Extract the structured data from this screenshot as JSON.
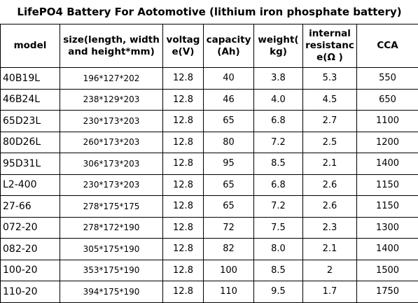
{
  "table": {
    "title": "LifePO4 Battery For Aotomotive (lithium iron phosphate battery)",
    "header": [
      "model",
      "size(length, width\nand height*mm)",
      "voltag\ne(V)",
      "capacity\n(Ah)",
      "weight(\nkg)",
      "internal\nresistanc\ne(Ω )",
      "CCA"
    ],
    "rows": [
      [
        "40B19L",
        "196*127*202",
        "12.8",
        "40",
        "3.8",
        "5.3",
        "550"
      ],
      [
        "46B24L",
        "238*129*203",
        "12.8",
        "46",
        "4.0",
        "4.5",
        "650"
      ],
      [
        "65D23L",
        "230*173*203",
        "12.8",
        "65",
        "6.8",
        "2.7",
        "1100"
      ],
      [
        "80D26L",
        "260*173*203",
        "12.8",
        "80",
        "7.2",
        "2.5",
        "1200"
      ],
      [
        "95D31L",
        "306*173*203",
        "12.8",
        "95",
        "8.5",
        "2.1",
        "1400"
      ],
      [
        "L2-400",
        "230*173*203",
        "12.8",
        "65",
        "6.8",
        "2.6",
        "1150"
      ],
      [
        "27-66",
        "278*175*175",
        "12.8",
        "65",
        "7.2",
        "2.6",
        "1150"
      ],
      [
        "072-20",
        "278*172*190",
        "12.8",
        "72",
        "7.5",
        "2.3",
        "1300"
      ],
      [
        "082-20",
        "305*175*190",
        "12.8",
        "82",
        "8.0",
        "2.1",
        "1400"
      ],
      [
        "100-20",
        "353*175*190",
        "12.8",
        "100",
        "8.5",
        "2",
        "1500"
      ],
      [
        "110-20",
        "394*175*190",
        "12.8",
        "110",
        "9.5",
        "1.7",
        "1750"
      ]
    ]
  }
}
